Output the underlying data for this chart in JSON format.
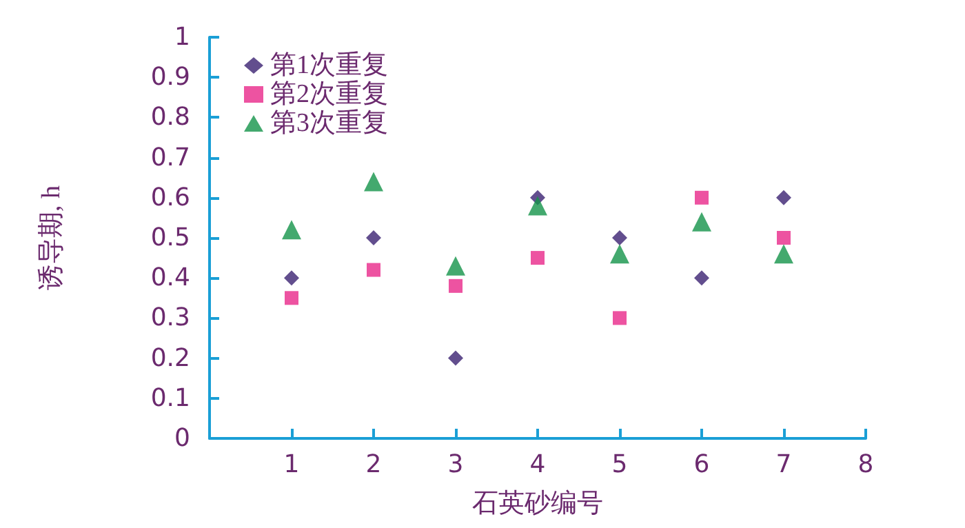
{
  "chart_data": {
    "type": "scatter",
    "xlabel": "石英砂编号",
    "ylabel": "诱导期, h",
    "x": [
      1,
      2,
      3,
      4,
      5,
      6,
      7
    ],
    "xlim": [
      0,
      8
    ],
    "xticks": [
      1,
      2,
      3,
      4,
      5,
      6,
      7,
      8
    ],
    "ylim": [
      0,
      1
    ],
    "yticks": [
      0,
      0.1,
      0.2,
      0.3,
      0.4,
      0.5,
      0.6,
      0.7,
      0.8,
      0.9,
      1
    ],
    "grid": false,
    "legend": "top left",
    "series": [
      {
        "name": "第1次重复",
        "color": "#3b2272",
        "marker": "diamond",
        "values": [
          0.4,
          0.5,
          0.2,
          0.6,
          0.5,
          0.4,
          0.6
        ]
      },
      {
        "name": "第2次重复",
        "color": "#e8288a",
        "marker": "square",
        "values": [
          0.35,
          0.42,
          0.38,
          0.45,
          0.3,
          0.6,
          0.5
        ]
      },
      {
        "name": "第3次重复",
        "color": "#14934a",
        "marker": "triangle",
        "values": [
          0.52,
          0.64,
          0.43,
          0.58,
          0.46,
          0.54,
          0.46
        ]
      }
    ]
  }
}
